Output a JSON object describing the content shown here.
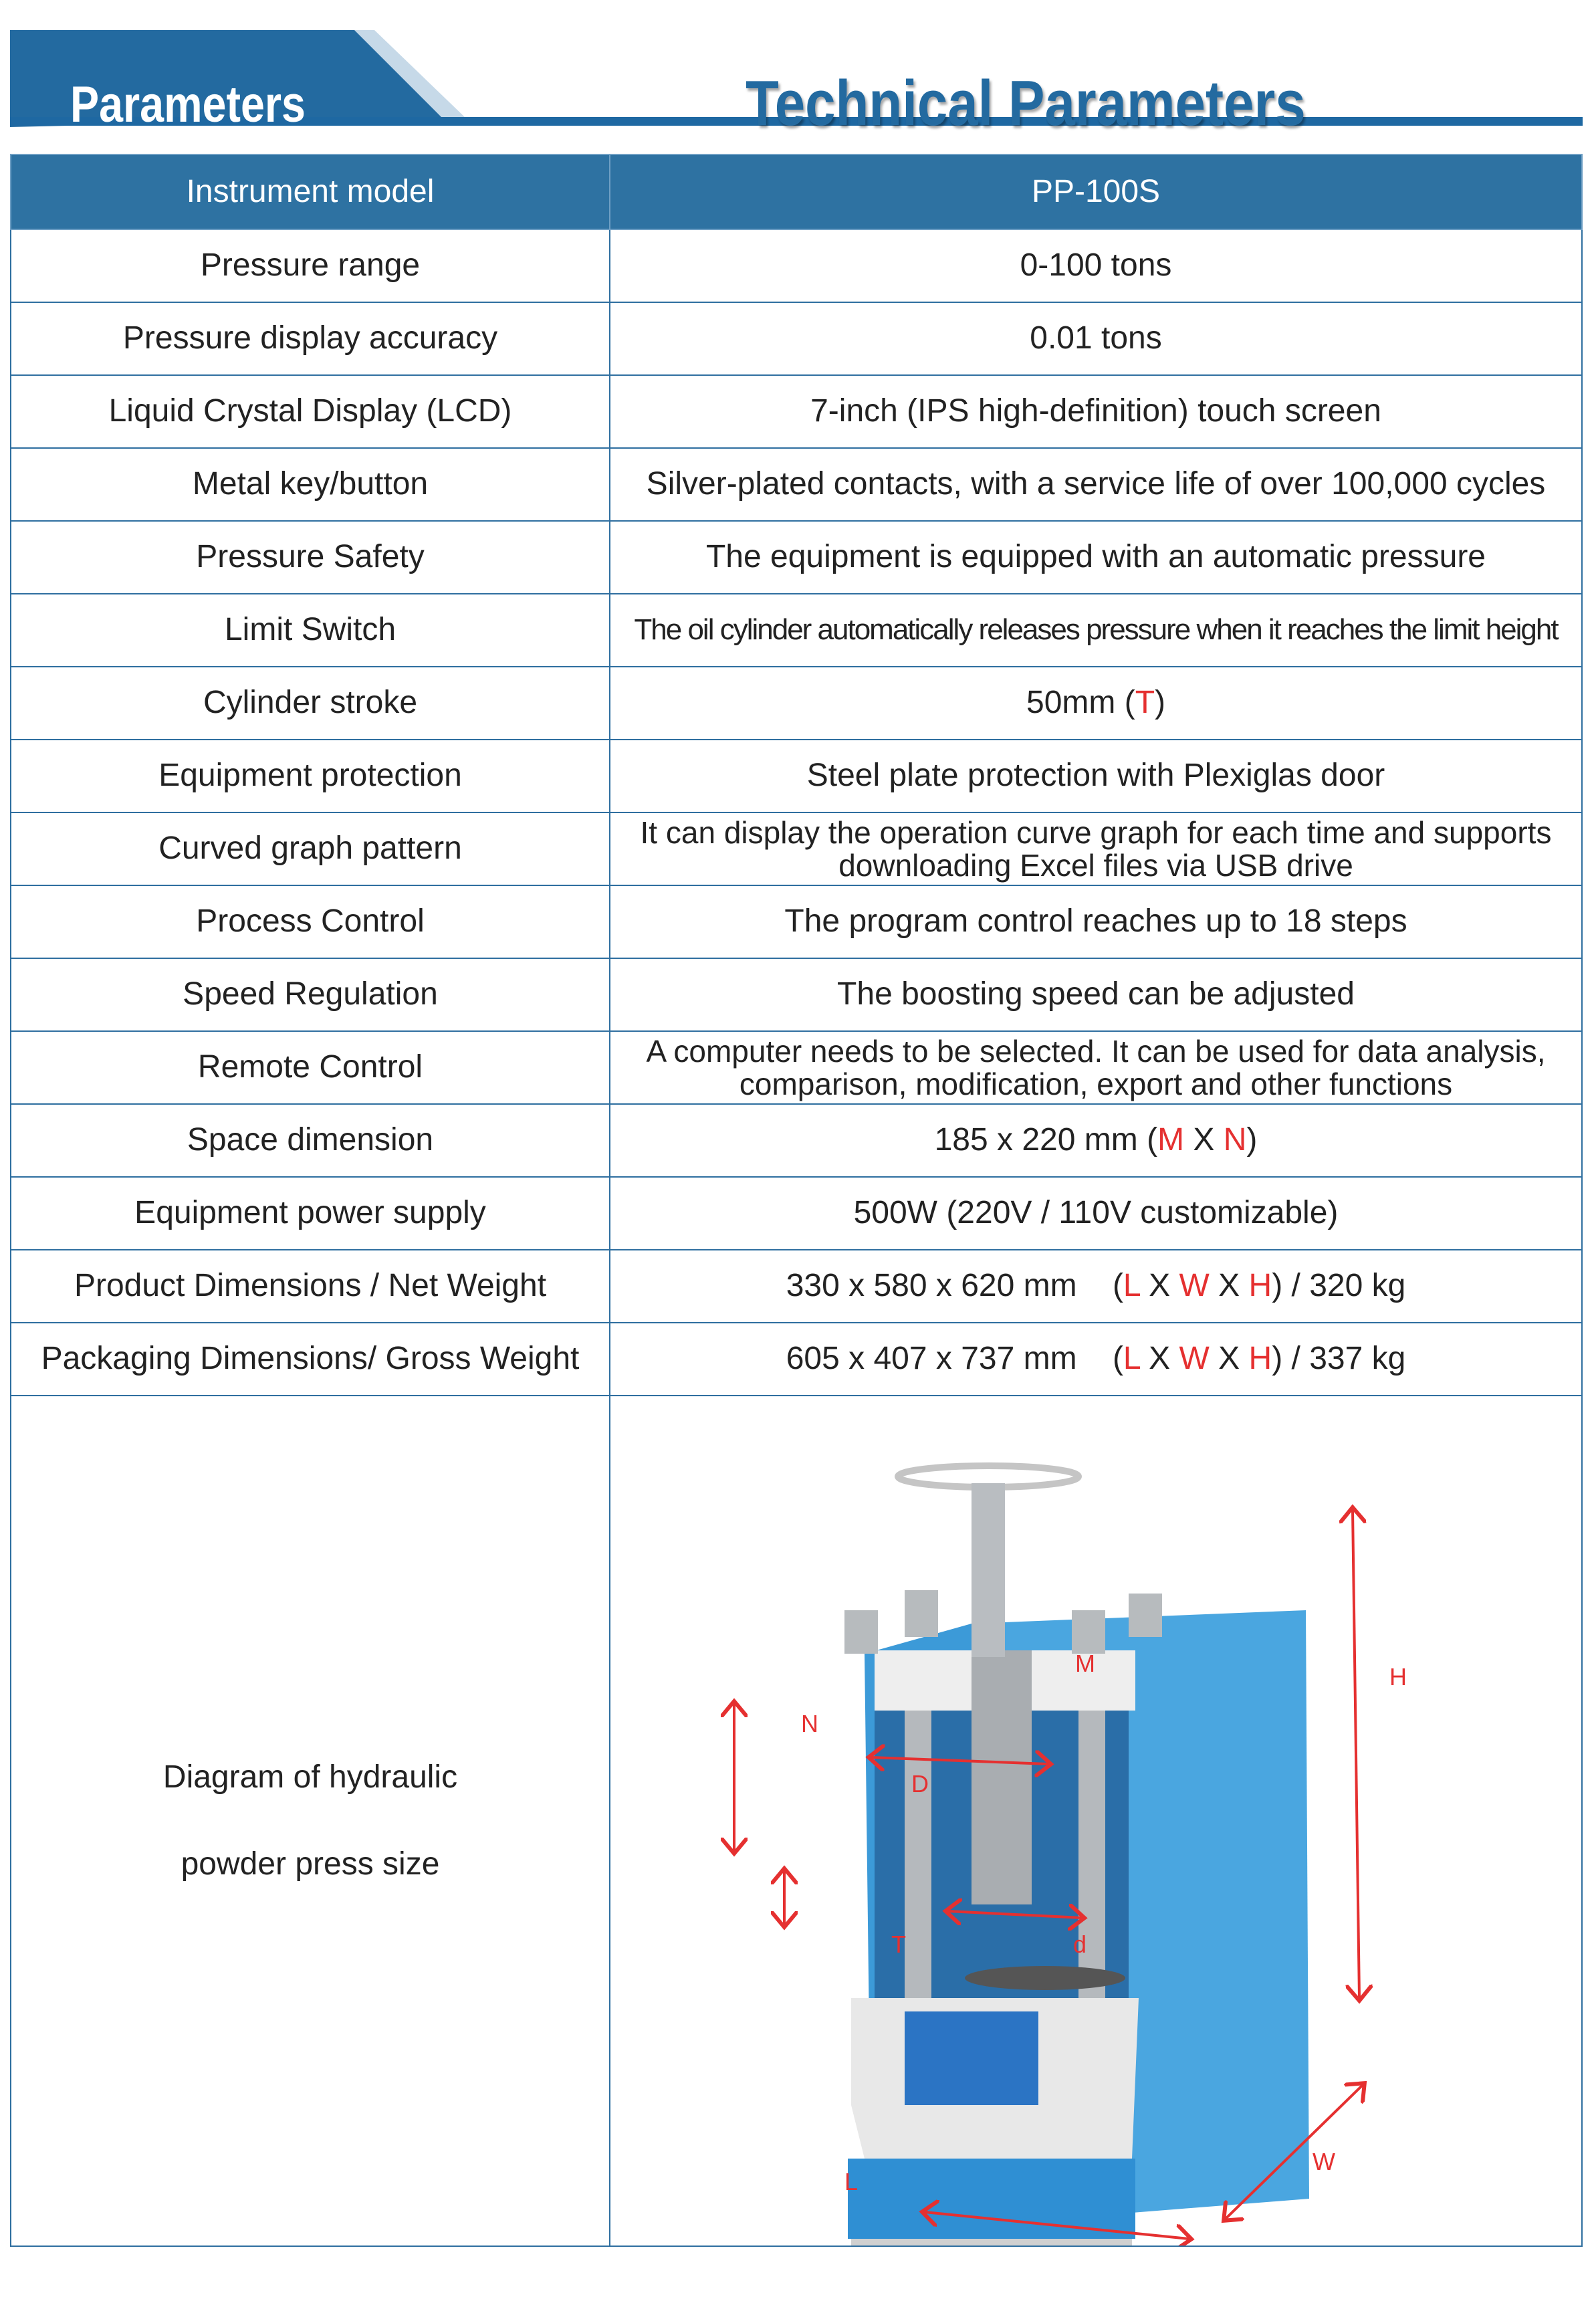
{
  "header": {
    "tab_label": "Parameters",
    "title": "Technical Parameters",
    "accent": "#236aa0"
  },
  "table": {
    "head": {
      "label": "Instrument model",
      "value": "PP-100S"
    },
    "rows": [
      {
        "label": "Pressure range",
        "value": "0-100 tons"
      },
      {
        "label": "Pressure display accuracy",
        "value": "0.01 tons"
      },
      {
        "label": "Liquid Crystal Display (LCD)",
        "value": "7-inch (IPS high-definition) touch screen"
      },
      {
        "label": "Metal key/button",
        "value": "Silver-plated contacts, with a service life of over 100,000 cycles"
      },
      {
        "label": "Pressure Safety",
        "value": "The equipment is equipped with an automatic pressure"
      },
      {
        "label": "Limit Switch",
        "value": "The oil cylinder automatically releases pressure when it reaches the limit height"
      },
      {
        "label": "Cylinder stroke",
        "value": "50mm (",
        "value_red": "T",
        "value_end": ")"
      },
      {
        "label": "Equipment protection",
        "value": "Steel plate protection with Plexiglas door"
      },
      {
        "label": "Curved graph pattern",
        "value": "It can display the operation curve graph for each time and supports",
        "value2": "downloading Excel files via USB drive"
      },
      {
        "label": "Process Control",
        "value": "The program control reaches up to 18 steps"
      },
      {
        "label": "Speed Regulation",
        "value": "The boosting speed can be adjusted"
      },
      {
        "label": "Remote Control",
        "value": "A computer needs to be selected. It can be used for data analysis,",
        "value2": "comparison, modification, export and other functions"
      },
      {
        "label": "Space dimension",
        "value": "185 x 220 mm (",
        "r1": "M",
        "x": " X ",
        "r2": "N",
        "value_end": ")"
      },
      {
        "label": "Equipment power supply",
        "value": "500W (220V / 110V customizable)"
      },
      {
        "label": "Product Dimensions / Net Weight",
        "value": "330 x 580 x 620 mm    (",
        "r1": "L",
        "x1": " X ",
        "r2": "W",
        "x2": " X ",
        "r3": "H",
        "value_end": ") / 320 kg"
      },
      {
        "label": "Packaging Dimensions/ Gross Weight",
        "value": "605 x 407 x 737 mm    (",
        "r1": "L",
        "x1": " X ",
        "r2": "W",
        "x2": " X ",
        "r3": "H",
        "value_end": ") / 337 kg"
      }
    ],
    "diagram": {
      "line1": "Diagram of hydraulic",
      "line2": "powder press size",
      "labels": {
        "M": "M",
        "N": "N",
        "T": "T",
        "D": "D",
        "d": "d",
        "H": "H",
        "W": "W",
        "L": "L"
      }
    }
  }
}
